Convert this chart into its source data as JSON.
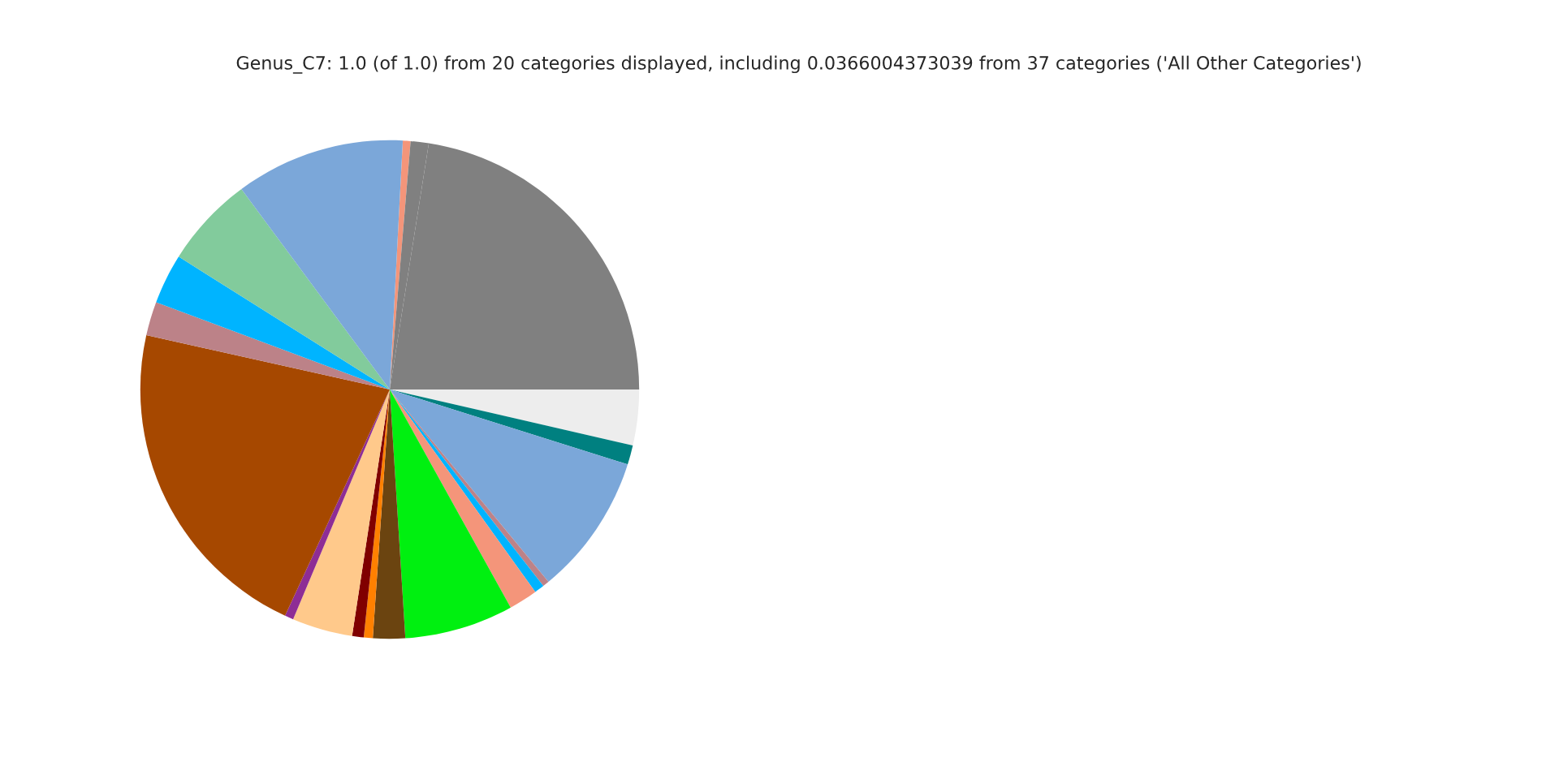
{
  "chart_data": {
    "type": "pie",
    "title": "Genus_C7: 1.0 (of 1.0) from 20 categories displayed, including 0.0366004373039 from 37 categories ('All Other Categories')",
    "categories": [
      null,
      null,
      null,
      null,
      null,
      null,
      null,
      null,
      null,
      null,
      null,
      null,
      null,
      null,
      null,
      null,
      null,
      null,
      null,
      null
    ],
    "values": [
      0.5,
      1.17,
      22.5,
      3.6,
      1.25,
      9.17,
      0.42,
      0.64,
      1.86,
      7.06,
      2.08,
      0.58,
      0.75,
      3.92,
      0.56,
      21.61,
      2.19,
      3.25,
      5.92,
      10.97
    ],
    "colors": [
      "#f4957a",
      "#808080",
      "#808080",
      "#ededed",
      "#008080",
      "#7ba7d9",
      "#bc8288",
      "#00b4ff",
      "#f4957a",
      "#00f010",
      "#6b4410",
      "#ff8000",
      "#800000",
      "#ffc98b",
      "#8e2d95",
      "#a64800",
      "#bc8288",
      "#00b4ff",
      "#82cb9c",
      "#7ba7d9"
    ]
  }
}
